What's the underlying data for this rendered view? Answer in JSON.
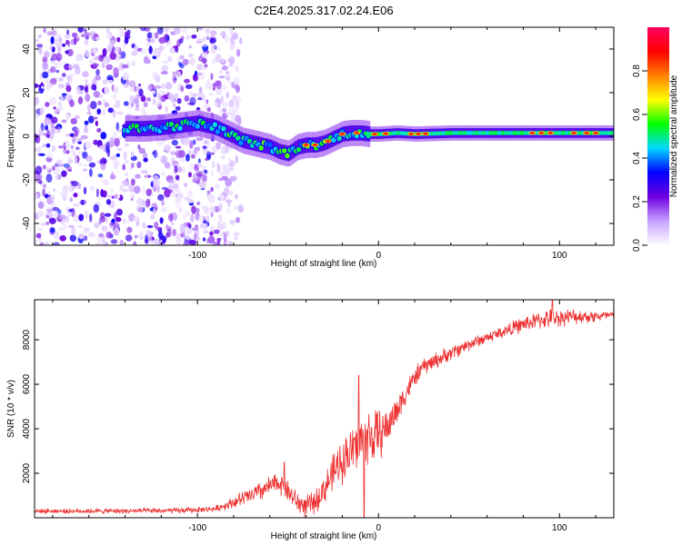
{
  "figure": {
    "title": "C2E4.2025.317.02.24.E06"
  },
  "chart_data": [
    {
      "type": "heatmap",
      "title": "C2E4.2025.317.02.24.E06",
      "xlabel": "Height of straight line (km)",
      "ylabel": "Frequency (Hz)",
      "xlim": [
        -190,
        130
      ],
      "ylim": [
        -50,
        50
      ],
      "x_ticks": [
        -100,
        0,
        100
      ],
      "y_ticks": [
        -40,
        -20,
        0,
        20,
        40
      ],
      "x_tick_labels": [
        "-100",
        "0",
        "100"
      ],
      "y_tick_labels": [
        "-40",
        "-20",
        "0",
        "20",
        "40"
      ],
      "colorbar": {
        "label": "Normalized spectral amplitude",
        "range": [
          0,
          1
        ],
        "ticks": [
          0.0,
          0.2,
          0.4,
          0.6,
          0.8
        ],
        "tick_labels": [
          "0.0",
          "0.2",
          "0.4",
          "0.6",
          "0.8"
        ],
        "colormap": [
          "#ffffff",
          "#c8a0ff",
          "#7000e0",
          "#0000ff",
          "#00d8ff",
          "#00ff00",
          "#ffff00",
          "#ff8000",
          "#ff0000",
          "#ff0060"
        ]
      },
      "noise_region_x": [
        -190,
        -88
      ],
      "ridge": [
        {
          "x": -140,
          "f": 3.5
        },
        {
          "x": -130,
          "f": 3.5
        },
        {
          "x": -120,
          "f": 4
        },
        {
          "x": -110,
          "f": 5
        },
        {
          "x": -100,
          "f": 6
        },
        {
          "x": -95,
          "f": 5
        },
        {
          "x": -90,
          "f": 4
        },
        {
          "x": -85,
          "f": 2
        },
        {
          "x": -80,
          "f": 0
        },
        {
          "x": -75,
          "f": -2
        },
        {
          "x": -70,
          "f": -3
        },
        {
          "x": -65,
          "f": -4
        },
        {
          "x": -60,
          "f": -5
        },
        {
          "x": -55,
          "f": -7
        },
        {
          "x": -50,
          "f": -8
        },
        {
          "x": -45,
          "f": -5
        },
        {
          "x": -40,
          "f": -4
        },
        {
          "x": -35,
          "f": -4
        },
        {
          "x": -30,
          "f": -3
        },
        {
          "x": -25,
          "f": -1
        },
        {
          "x": -20,
          "f": 1
        },
        {
          "x": -15,
          "f": 1.5
        },
        {
          "x": -10,
          "f": 1.5
        },
        {
          "x": -5,
          "f": 1
        },
        {
          "x": 0,
          "f": 1
        },
        {
          "x": 10,
          "f": 1.5
        },
        {
          "x": 20,
          "f": 1
        },
        {
          "x": 40,
          "f": 1.5
        },
        {
          "x": 60,
          "f": 1.5
        },
        {
          "x": 80,
          "f": 1.5
        },
        {
          "x": 100,
          "f": 1.5
        },
        {
          "x": 130,
          "f": 1.5
        }
      ]
    },
    {
      "type": "line",
      "xlabel": "Height of straight line (km)",
      "ylabel": "SNR (10 * v/v)",
      "xlim": [
        -190,
        130
      ],
      "ylim": [
        0,
        9800
      ],
      "x_ticks": [
        -100,
        0,
        100
      ],
      "y_ticks": [
        2000,
        4000,
        6000,
        8000
      ],
      "x_tick_labels": [
        "-100",
        "0",
        "100"
      ],
      "y_tick_labels": [
        "2000",
        "4000",
        "6000",
        "8000"
      ],
      "line_color": "#ee3030",
      "series": [
        {
          "name": "SNR",
          "trend": [
            {
              "x": -190,
              "y": 300
            },
            {
              "x": -150,
              "y": 300
            },
            {
              "x": -110,
              "y": 320
            },
            {
              "x": -90,
              "y": 400
            },
            {
              "x": -80,
              "y": 700
            },
            {
              "x": -70,
              "y": 1000
            },
            {
              "x": -60,
              "y": 1400
            },
            {
              "x": -55,
              "y": 1600
            },
            {
              "x": -50,
              "y": 1200
            },
            {
              "x": -45,
              "y": 700
            },
            {
              "x": -40,
              "y": 500
            },
            {
              "x": -35,
              "y": 700
            },
            {
              "x": -30,
              "y": 1300
            },
            {
              "x": -25,
              "y": 2000
            },
            {
              "x": -20,
              "y": 2600
            },
            {
              "x": -15,
              "y": 3000
            },
            {
              "x": -10,
              "y": 3400
            },
            {
              "x": -5,
              "y": 3600
            },
            {
              "x": 0,
              "y": 3700
            },
            {
              "x": 5,
              "y": 4100
            },
            {
              "x": 10,
              "y": 4800
            },
            {
              "x": 15,
              "y": 5600
            },
            {
              "x": 20,
              "y": 6300
            },
            {
              "x": 25,
              "y": 6800
            },
            {
              "x": 30,
              "y": 7000
            },
            {
              "x": 40,
              "y": 7400
            },
            {
              "x": 50,
              "y": 7800
            },
            {
              "x": 60,
              "y": 8100
            },
            {
              "x": 70,
              "y": 8400
            },
            {
              "x": 80,
              "y": 8700
            },
            {
              "x": 90,
              "y": 8900
            },
            {
              "x": 100,
              "y": 9000
            },
            {
              "x": 110,
              "y": 9050
            },
            {
              "x": 120,
              "y": 9050
            },
            {
              "x": 130,
              "y": 9100
            }
          ],
          "noise_amplitude": [
            {
              "x": -190,
              "a": 120
            },
            {
              "x": -90,
              "a": 150
            },
            {
              "x": -70,
              "a": 500
            },
            {
              "x": -50,
              "a": 600
            },
            {
              "x": -35,
              "a": 600
            },
            {
              "x": -20,
              "a": 1200
            },
            {
              "x": -5,
              "a": 1700
            },
            {
              "x": 5,
              "a": 1000
            },
            {
              "x": 20,
              "a": 500
            },
            {
              "x": 60,
              "a": 300
            },
            {
              "x": 95,
              "a": 500
            },
            {
              "x": 130,
              "a": 250
            }
          ],
          "peaks": [
            {
              "x": -52,
              "y": 2500
            },
            {
              "x": -11,
              "y": 6400
            },
            {
              "x": -8,
              "y": 0
            },
            {
              "x": 96,
              "y": 9800
            }
          ]
        }
      ]
    }
  ]
}
